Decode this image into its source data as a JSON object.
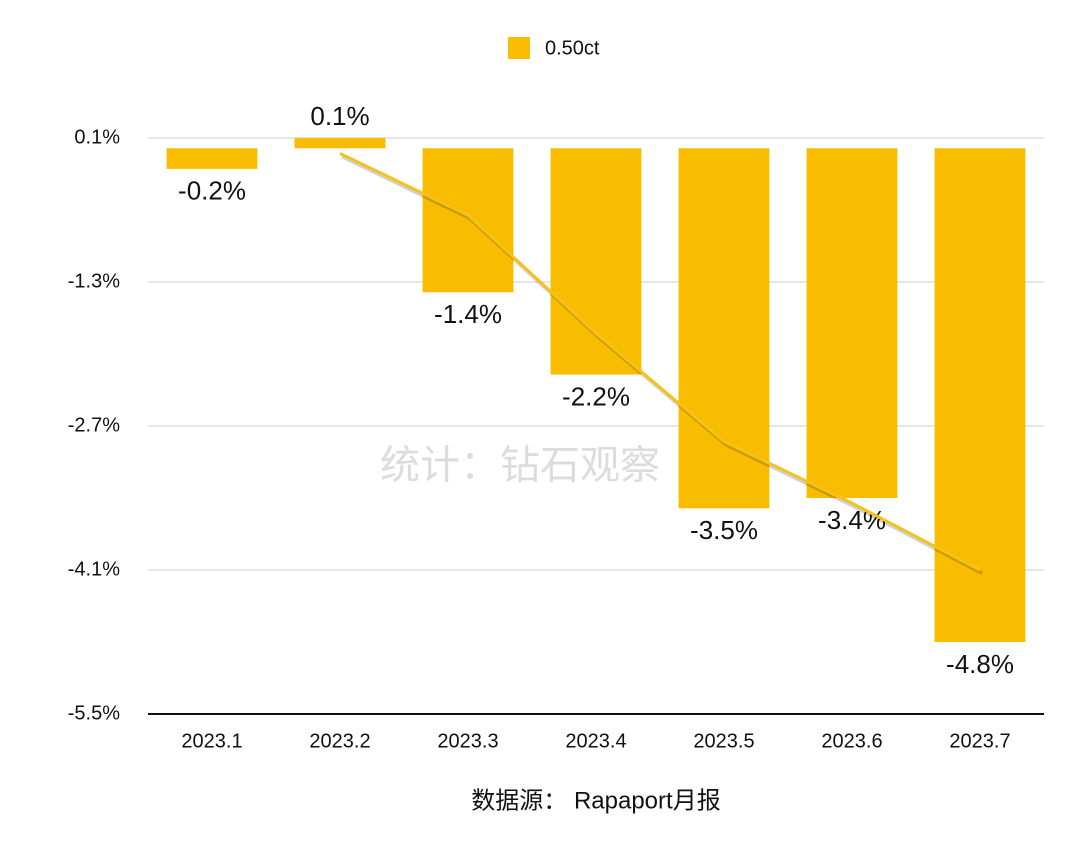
{
  "chart_data": {
    "type": "bar",
    "legend": "0.50ct",
    "categories": [
      "2023.1",
      "2023.2",
      "2023.3",
      "2023.4",
      "2023.5",
      "2023.6",
      "2023.7"
    ],
    "values": [
      -0.2,
      0.1,
      -1.4,
      -2.2,
      -3.5,
      -3.4,
      -4.8
    ],
    "value_labels": [
      "-0.2%",
      "0.1%",
      "-1.4%",
      "-2.2%",
      "-3.5%",
      "-3.4%",
      "-4.8%"
    ],
    "color": "#f8bc00",
    "trendline": {
      "color": "#f5c21a",
      "values": [
        null,
        -0.05,
        -0.65,
        -1.8,
        -2.85,
        -3.45,
        -4.1
      ]
    },
    "ylim": [
      -5.5,
      0.1
    ],
    "yticks": [
      {
        "value": 0.1,
        "label": "0.1%"
      },
      {
        "value": -1.3,
        "label": "-1.3%"
      },
      {
        "value": -2.7,
        "label": "-2.7%"
      },
      {
        "value": -4.1,
        "label": "-4.1%"
      },
      {
        "value": -5.5,
        "label": "-5.5%"
      }
    ],
    "grid": true,
    "watermark": "统计：钻石观察",
    "source": "数据源： Rapaport月报"
  }
}
